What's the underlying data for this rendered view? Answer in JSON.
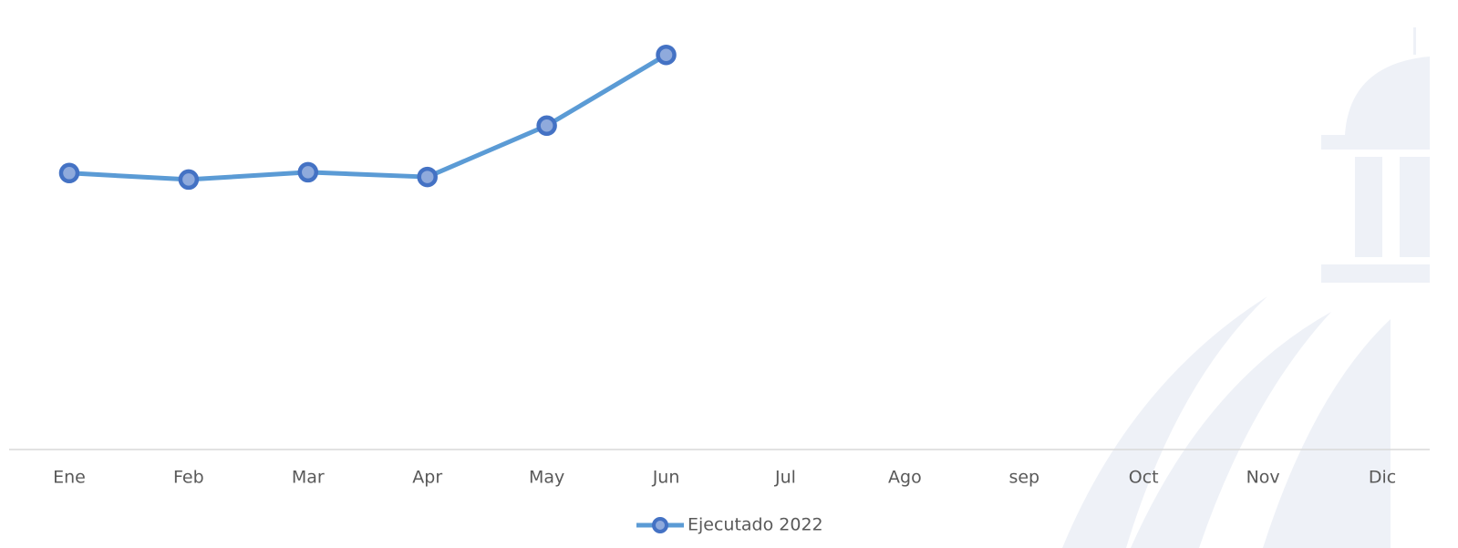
{
  "chart_data": {
    "type": "line",
    "categories": [
      "Ene",
      "Feb",
      "Mar",
      "Apr",
      "May",
      "Jun",
      "Jul",
      "Ago",
      "sep",
      "Oct",
      "Nov",
      "Dic"
    ],
    "series": [
      {
        "name": "Ejecutado 2022",
        "color": "#5b9bd5",
        "marker_color": "#4472c4",
        "values": [
          64.1,
          62.6,
          64.3,
          63.2,
          75.1,
          91.5,
          null,
          null,
          null,
          null,
          null,
          null
        ]
      }
    ],
    "ylim": [
      0,
      100
    ],
    "legend": "bottom"
  }
}
